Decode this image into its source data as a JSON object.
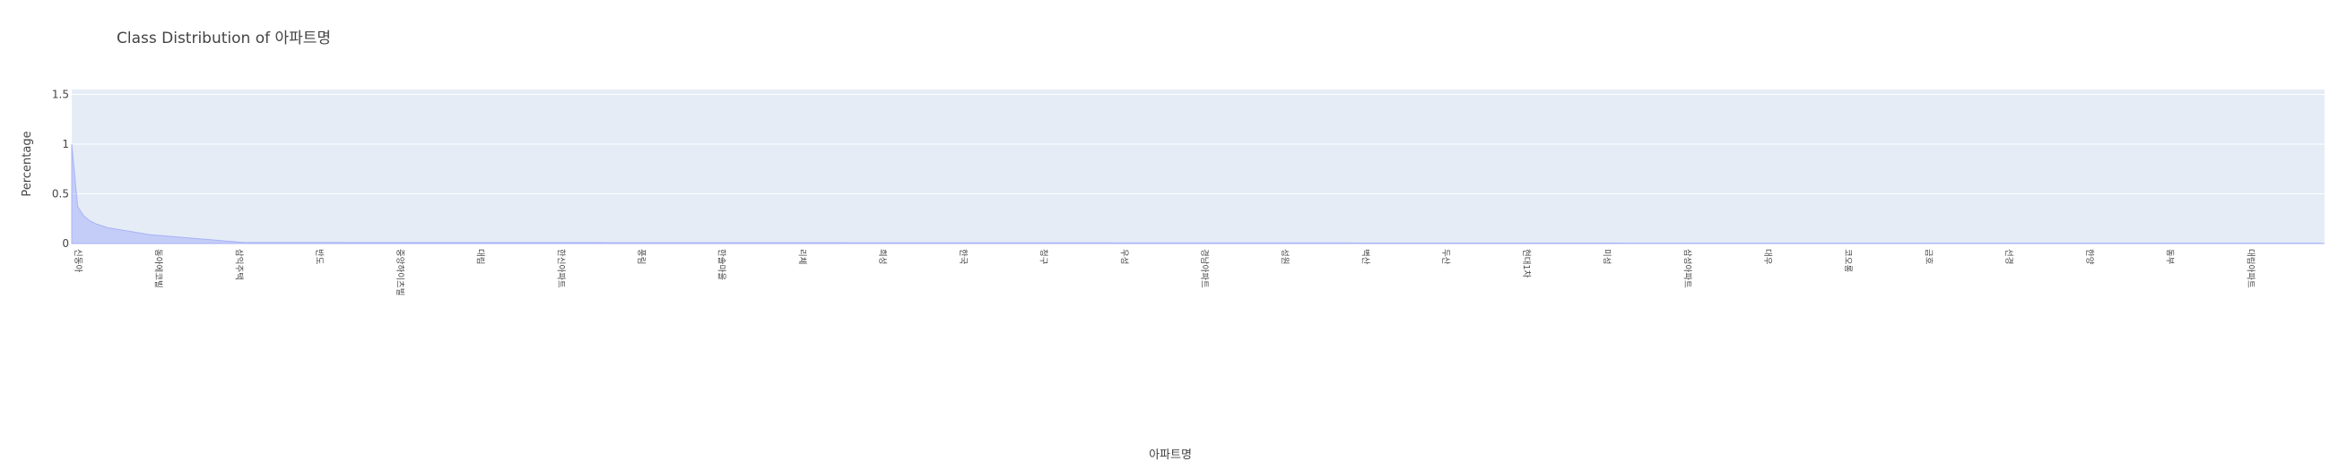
{
  "chart_data": {
    "type": "area",
    "title": "Class Distribution of 아파트명",
    "xlabel": "아파트명",
    "ylabel": "Percentage",
    "ylim": [
      0,
      1.55
    ],
    "yticks": [
      0,
      0.5,
      1,
      1.5
    ],
    "ytick_labels": [
      "0",
      "0.5",
      "1",
      "1.5"
    ],
    "grid": true,
    "legend": "none",
    "n_categories": 380,
    "series": [
      {
        "values": [
          1.0,
          0.37,
          0.28,
          0.23,
          0.2,
          0.18,
          0.16,
          0.15,
          0.14,
          0.13,
          0.12,
          0.11,
          0.1,
          0.09,
          0.085,
          0.08,
          0.075,
          0.07,
          0.065,
          0.06,
          0.055,
          0.05,
          0.045,
          0.04,
          0.035,
          0.03,
          0.025,
          0.02,
          0.015,
          0.01
        ]
      }
    ],
    "tick_labels": [
      "신동아",
      "동아에코빌",
      "삼익주택",
      "반도",
      "중앙하이츠빌",
      "대림",
      "한신아파트",
      "풍림",
      "한솔마을",
      "리체",
      "희성",
      "한국",
      "청구",
      "우성",
      "경남아파트",
      "성원",
      "벽산",
      "두산",
      "현대1차",
      "미성",
      "삼성아파트",
      "대우",
      "코오롱",
      "금호",
      "선경",
      "한양",
      "동부",
      "대림아파트"
    ]
  },
  "colors": {
    "plot_bg": "#e5ecf6",
    "grid": "#ffffff",
    "fill": "rgba(99,110,250,0.25)",
    "line": "#a9b2f7",
    "text": "#444444"
  }
}
